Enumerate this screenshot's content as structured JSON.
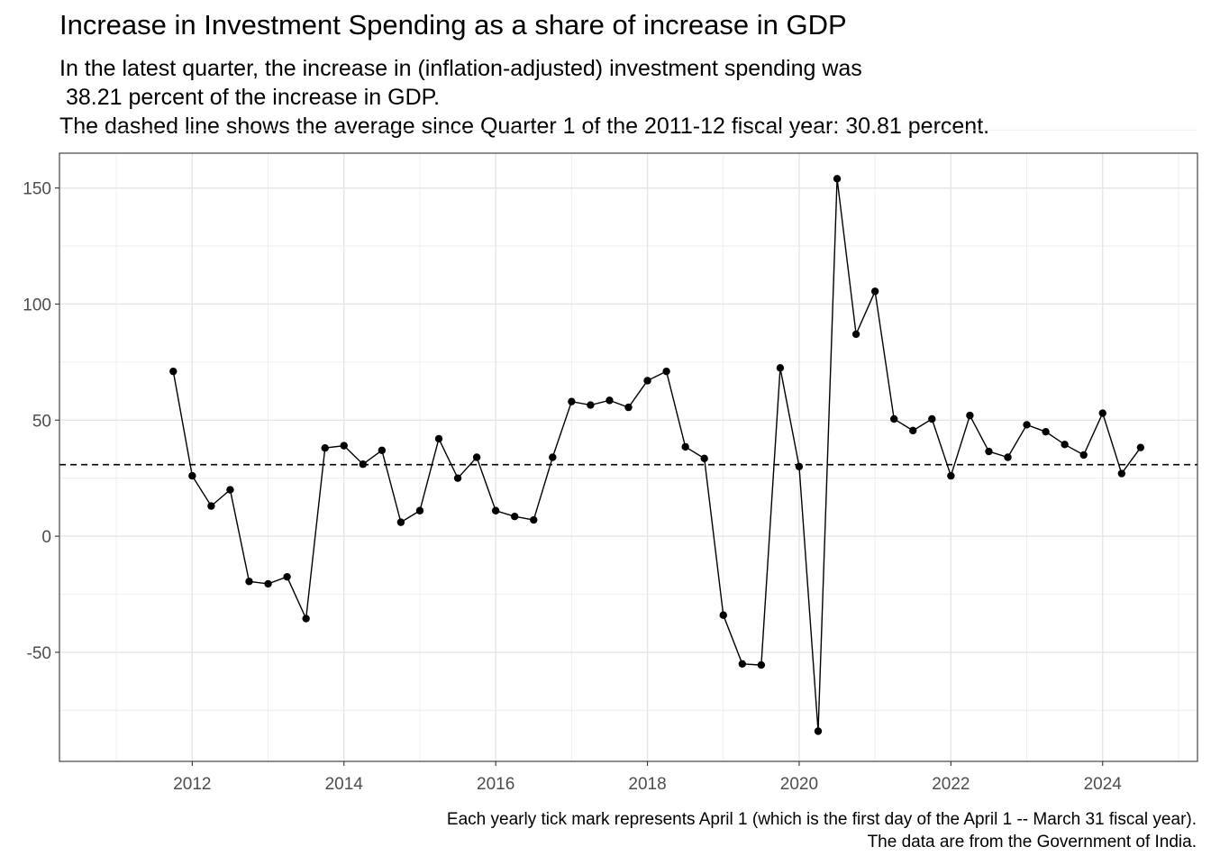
{
  "title": "Increase in Investment Spending as a share of increase in GDP",
  "subtitle_lines": [
    "In the latest quarter, the increase in (inflation-adjusted) investment spending was",
    " 38.21 percent of the increase in GDP.",
    "The dashed line shows the average since Quarter 1 of the 2011-12 fiscal year: 30.81 percent."
  ],
  "caption_lines": [
    "Each yearly tick mark represents April 1 (which is the first day of the April 1 -- March 31 fiscal year).",
    "The data are from the Government of India."
  ],
  "chart_data": {
    "type": "line",
    "title": "Increase in Investment Spending as a share of increase in GDP",
    "xlabel": "",
    "ylabel": "",
    "x_ticks": [
      "2012",
      "2014",
      "2016",
      "2018",
      "2020",
      "2022",
      "2024"
    ],
    "y_ticks": [
      -50,
      0,
      50,
      100,
      150
    ],
    "xlim": [
      "2010-07-01",
      "2025-07-01"
    ],
    "ylim": [
      -97,
      165
    ],
    "grid": true,
    "reference_line": {
      "value": 30.81,
      "style": "dashed"
    },
    "series": [
      {
        "x": [
          "2012-01-01",
          "2012-04-01",
          "2012-07-01",
          "2012-10-01",
          "2013-01-01",
          "2013-04-01",
          "2013-07-01",
          "2013-10-01",
          "2014-01-01",
          "2014-04-01",
          "2014-07-01",
          "2014-10-01",
          "2015-01-01",
          "2015-04-01",
          "2015-07-01",
          "2015-10-01",
          "2016-01-01",
          "2016-04-01",
          "2016-07-01",
          "2016-10-01",
          "2017-01-01",
          "2017-04-01",
          "2017-07-01",
          "2017-10-01",
          "2018-01-01",
          "2018-04-01",
          "2018-07-01",
          "2018-10-01",
          "2019-01-01",
          "2019-04-01",
          "2019-07-01",
          "2019-10-01",
          "2020-01-01",
          "2020-04-01",
          "2020-07-01",
          "2020-10-01",
          "2021-01-01",
          "2021-04-01",
          "2021-07-01",
          "2021-10-01",
          "2022-01-01",
          "2022-04-01",
          "2022-07-01",
          "2022-10-01",
          "2023-01-01",
          "2023-04-01",
          "2023-07-01",
          "2023-10-01",
          "2024-01-01",
          "2024-04-01",
          "2024-07-01",
          "2024-10-01"
        ],
        "values": [
          71,
          26,
          13,
          20,
          -19.5,
          -20.5,
          -17.5,
          -35.5,
          38,
          39,
          31,
          37,
          6,
          11,
          42,
          25,
          34,
          11,
          8.5,
          7,
          34,
          58,
          56.5,
          58.5,
          55.5,
          67,
          71,
          38.5,
          33.5,
          -34,
          -55,
          -55.5,
          72.5,
          30,
          -84,
          154,
          87,
          105.5,
          50.5,
          45.5,
          50.5,
          26,
          52,
          36.5,
          34,
          48,
          45,
          39.5,
          35,
          53,
          27,
          38.2
        ]
      }
    ]
  }
}
